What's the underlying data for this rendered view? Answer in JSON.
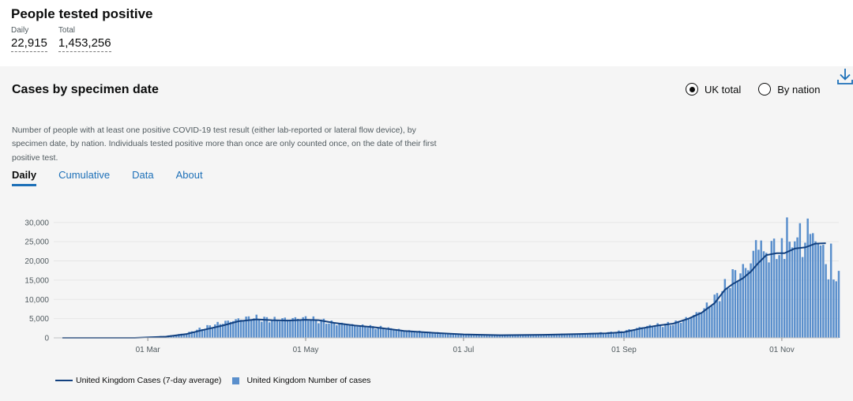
{
  "headline": {
    "title": "People tested positive",
    "daily_label": "Daily",
    "daily_value": "22,915",
    "total_label": "Total",
    "total_value": "1,453,256"
  },
  "card": {
    "title": "Cases by specimen date",
    "options": [
      {
        "label": "UK total",
        "selected": true
      },
      {
        "label": "By nation",
        "selected": false
      }
    ],
    "description": "Number of people with at least one positive COVID-19 test result (either lab-reported or lateral flow device), by specimen date, by nation. Individuals tested positive more than once are only counted once, on the date of their first positive test.",
    "tabs": [
      {
        "label": "Daily",
        "active": true
      },
      {
        "label": "Cumulative",
        "active": false
      },
      {
        "label": "Data",
        "active": false
      },
      {
        "label": "About",
        "active": false
      }
    ]
  },
  "colors": {
    "bar": "#5a8fcc",
    "line": "#12407f",
    "tab_link": "#1d70b8"
  },
  "icons": {
    "download": "download-icon"
  },
  "chart_data": {
    "type": "bar",
    "x_start": "2020-01-28",
    "x_end": "2020-11-23",
    "x_tick_labels": [
      "01 Mar",
      "01 May",
      "01 Jul",
      "01 Sep",
      "01 Nov"
    ],
    "y_tick_labels": [
      "0",
      "5,000",
      "10,000",
      "15,000",
      "20,000",
      "25,000",
      "30,000"
    ],
    "ylim": [
      0,
      32000
    ],
    "grid": true,
    "series": [
      {
        "name": "United Kingdom Cases (7-day average)",
        "type": "line",
        "points": [
          [
            "2020-01-28",
            0
          ],
          [
            "2020-02-25",
            0
          ],
          [
            "2020-03-08",
            300
          ],
          [
            "2020-03-16",
            1000
          ],
          [
            "2020-03-22",
            2000
          ],
          [
            "2020-03-30",
            3200
          ],
          [
            "2020-04-05",
            4300
          ],
          [
            "2020-04-12",
            4800
          ],
          [
            "2020-04-18",
            4600
          ],
          [
            "2020-04-24",
            4500
          ],
          [
            "2020-05-01",
            4700
          ],
          [
            "2020-05-06",
            4600
          ],
          [
            "2020-05-12",
            3900
          ],
          [
            "2020-05-20",
            3200
          ],
          [
            "2020-05-28",
            2700
          ],
          [
            "2020-06-08",
            1800
          ],
          [
            "2020-06-20",
            1300
          ],
          [
            "2020-07-01",
            900
          ],
          [
            "2020-07-15",
            700
          ],
          [
            "2020-08-01",
            800
          ],
          [
            "2020-08-15",
            1000
          ],
          [
            "2020-08-25",
            1200
          ],
          [
            "2020-09-01",
            1500
          ],
          [
            "2020-09-08",
            2500
          ],
          [
            "2020-09-14",
            3200
          ],
          [
            "2020-09-20",
            3700
          ],
          [
            "2020-09-26",
            5000
          ],
          [
            "2020-10-01",
            6500
          ],
          [
            "2020-10-06",
            9000
          ],
          [
            "2020-10-10",
            12500
          ],
          [
            "2020-10-13",
            14000
          ],
          [
            "2020-10-17",
            15500
          ],
          [
            "2020-10-20",
            17200
          ],
          [
            "2020-10-23",
            19500
          ],
          [
            "2020-10-26",
            21500
          ],
          [
            "2020-10-30",
            22000
          ],
          [
            "2020-11-02",
            22000
          ],
          [
            "2020-11-06",
            23200
          ],
          [
            "2020-11-10",
            23500
          ],
          [
            "2020-11-14",
            24500
          ],
          [
            "2020-11-18",
            24600
          ]
        ]
      },
      {
        "name": "United Kingdom Number of cases",
        "type": "bar",
        "envelope": [
          [
            "2020-01-28",
            0
          ],
          [
            "2020-02-25",
            50
          ],
          [
            "2020-03-08",
            500
          ],
          [
            "2020-03-16",
            1200
          ],
          [
            "2020-03-22",
            2500
          ],
          [
            "2020-03-30",
            4000
          ],
          [
            "2020-04-05",
            4800
          ],
          [
            "2020-04-10",
            5300
          ],
          [
            "2020-04-18",
            4700
          ],
          [
            "2020-04-25",
            5000
          ],
          [
            "2020-05-01",
            5100
          ],
          [
            "2020-05-06",
            4600
          ],
          [
            "2020-05-12",
            3800
          ],
          [
            "2020-05-20",
            3300
          ],
          [
            "2020-05-28",
            2800
          ],
          [
            "2020-06-08",
            2000
          ],
          [
            "2020-06-20",
            1300
          ],
          [
            "2020-07-01",
            900
          ],
          [
            "2020-07-15",
            700
          ],
          [
            "2020-08-01",
            800
          ],
          [
            "2020-08-15",
            1100
          ],
          [
            "2020-08-25",
            1300
          ],
          [
            "2020-09-01",
            1800
          ],
          [
            "2020-09-08",
            2800
          ],
          [
            "2020-09-14",
            3300
          ],
          [
            "2020-09-20",
            3700
          ],
          [
            "2020-09-26",
            5200
          ],
          [
            "2020-10-01",
            7000
          ],
          [
            "2020-10-06",
            10000
          ],
          [
            "2020-10-10",
            13000
          ],
          [
            "2020-10-13",
            16000
          ],
          [
            "2020-10-17",
            17500
          ],
          [
            "2020-10-20",
            19500
          ],
          [
            "2020-10-23",
            25000
          ],
          [
            "2020-10-26",
            22500
          ],
          [
            "2020-10-30",
            24000
          ],
          [
            "2020-11-02",
            21000
          ],
          [
            "2020-11-06",
            28000
          ],
          [
            "2020-11-10",
            26500
          ],
          [
            "2020-11-14",
            27000
          ],
          [
            "2020-11-18",
            22500
          ],
          [
            "2020-11-20",
            18000
          ],
          [
            "2020-11-23",
            15000
          ]
        ],
        "highlights": [
          [
            "2020-10-22",
            25400
          ],
          [
            "2020-10-24",
            25300
          ],
          [
            "2020-10-25",
            22500
          ],
          [
            "2020-10-29",
            25800
          ],
          [
            "2020-11-02",
            20500
          ],
          [
            "2020-11-03",
            31300
          ],
          [
            "2020-11-04",
            25000
          ],
          [
            "2020-11-05",
            23500
          ],
          [
            "2020-11-09",
            21000
          ],
          [
            "2020-11-11",
            31000
          ],
          [
            "2020-11-12",
            27000
          ],
          [
            "2020-11-13",
            27200
          ],
          [
            "2020-11-16",
            24000
          ],
          [
            "2020-11-19",
            15200
          ],
          [
            "2020-11-20",
            24500
          ],
          [
            "2020-11-22",
            14700
          ]
        ]
      }
    ]
  },
  "legend": {
    "line_label": "United Kingdom Cases (7-day average)",
    "bar_label": "United Kingdom Number of cases"
  }
}
